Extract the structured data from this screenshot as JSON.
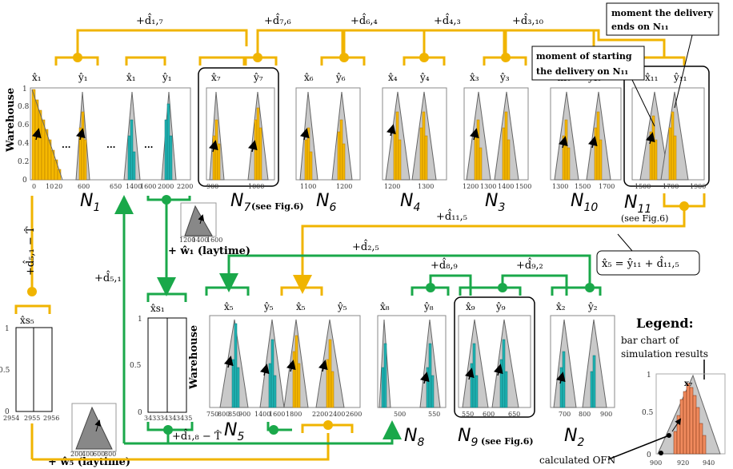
{
  "colors": {
    "orange_line": "#f0b400",
    "green_line": "#1aa84a",
    "bar_orange": "#f5b800",
    "bar_teal": "#1fb3b3",
    "triangle_gray": "#c9c9c9",
    "legend_bar": "#f08a5d"
  },
  "top_edges": [
    {
      "label": "+d̂₁,₇"
    },
    {
      "label": "+d̂₇,₆"
    },
    {
      "label": "+d̂₆,₄"
    },
    {
      "label": "+d̂₄,₃"
    },
    {
      "label": "+d̂₃,₁₀"
    }
  ],
  "n1": {
    "name": "N",
    "sub": "1",
    "warehouse": "Warehouse",
    "vars": [
      "x̂₁",
      "ŷ₁",
      "x̂₁",
      "ŷ₁"
    ],
    "ellipsis": "...",
    "ticks": [
      "0",
      "10",
      "20",
      "600",
      "650",
      "1400",
      "1600",
      "2000",
      "2200"
    ],
    "yticks": [
      "0",
      "0.2",
      "0.4",
      "0.6",
      "0.8",
      "1"
    ]
  },
  "n7": {
    "name": "N",
    "sub": "7",
    "note": "(see Fig.6)",
    "vars": [
      "x̂₇",
      "ŷ₇"
    ],
    "ticks": [
      "900",
      "1000"
    ]
  },
  "n6": {
    "name": "N",
    "sub": "6",
    "vars": [
      "x̂₆",
      "ŷ₆"
    ],
    "ticks": [
      "1100",
      "1200"
    ]
  },
  "n4": {
    "name": "N",
    "sub": "4",
    "vars": [
      "x̂₄",
      "ŷ₄"
    ],
    "ticks": [
      "1200",
      "1300"
    ]
  },
  "n3": {
    "name": "N",
    "sub": "3",
    "vars": [
      "x̂₃",
      "ŷ₃"
    ],
    "ticks": [
      "1200",
      "1300",
      "1400",
      "1500"
    ]
  },
  "n10": {
    "name": "N",
    "sub": "10",
    "vars": [
      "x̂₁₀",
      "ŷ₁₀"
    ],
    "ticks": [
      "1300",
      "1500",
      "1700"
    ]
  },
  "n11": {
    "name": "N",
    "sub": "11",
    "note": "(see Fig.6)",
    "vars": [
      "x̂₁₁",
      "ŷ₁₁"
    ],
    "ticks": [
      "1500",
      "1700",
      "1900"
    ]
  },
  "callouts": {
    "end": [
      "moment the delivery",
      "ends on N₁₁"
    ],
    "start": [
      "moment of starting",
      "the delivery on N₁₁"
    ]
  },
  "middle": {
    "d11_5": "+d̂₁₁,₅",
    "d2_5": "+d̂₂,₅",
    "d5_1": "+d̂₅,₁",
    "d5_1_minus": "+d̂₅,₁ − T̂",
    "equation": "x̂₅ = ŷ₁₁ + d̂₁₁,₅",
    "laytime1": "+ ŵ₁ (laytime)",
    "laytime5": "+ ŵ₅ (laytime)",
    "mini_ticks": [
      "1200",
      "1400",
      "1600"
    ],
    "mini_yticks": [
      "0.2",
      "0.4"
    ]
  },
  "xs5": {
    "label": "x̂s₅",
    "ticks": [
      "2954",
      "2955",
      "2956"
    ],
    "yticks": [
      "0",
      "0.5",
      "1"
    ]
  },
  "xs1": {
    "label": "x̂s₁",
    "ticks": [
      "3433",
      "3434",
      "3435"
    ],
    "yticks": [
      "0",
      "0.5",
      "1"
    ]
  },
  "mini5_ticks": [
    "200",
    "400",
    "600",
    "800"
  ],
  "n5": {
    "name": "N",
    "sub": "5",
    "warehouse": "Warehouse",
    "vars": [
      "x̂₅",
      "ŷ₅",
      "x̂₅",
      "ŷ₅"
    ],
    "ticks": [
      "750",
      "800",
      "850",
      "900",
      "1400",
      "1600",
      "1800",
      "2200",
      "2400",
      "2600"
    ]
  },
  "n8": {
    "name": "N",
    "sub": "8",
    "vars": [
      "x̂₈",
      "ŷ₈"
    ],
    "ticks": [
      "500",
      "550"
    ]
  },
  "n9": {
    "name": "N",
    "sub": "9",
    "note": "(see Fig.6)",
    "vars": [
      "x̂₉",
      "ŷ₉"
    ],
    "ticks": [
      "550",
      "600",
      "650"
    ]
  },
  "n2": {
    "name": "N",
    "sub": "2",
    "vars": [
      "x̂₂",
      "ŷ₂"
    ],
    "ticks": [
      "700",
      "800",
      "900"
    ]
  },
  "bottom_edges": {
    "d8_9": "+d̂₈,₉",
    "d9_2": "+d̂₉,₂",
    "d1_8": "+d̂₁,₈ − T̂"
  },
  "legend": {
    "title": "Legend:",
    "bar_text": [
      "bar chart of",
      "simulation results"
    ],
    "ofn_text": "calculated OFN",
    "var": "x₇",
    "xticks": [
      "900",
      "920",
      "940"
    ],
    "yticks": [
      "0",
      "0.5",
      "1"
    ]
  }
}
